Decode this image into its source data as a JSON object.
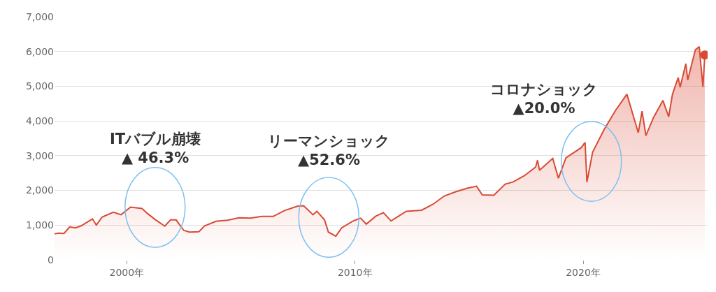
{
  "chart_data": {
    "type": "area",
    "xlim": [
      "1996-11-01",
      "2025-06-15"
    ],
    "ylim": [
      0,
      7000
    ],
    "xticks": [
      {
        "value": "2000-01-01",
        "label": "2000年"
      },
      {
        "value": "2010-01-01",
        "label": "2010年"
      },
      {
        "value": "2020-01-01",
        "label": "2020年"
      }
    ],
    "yticks": [
      0,
      {
        "value": 1000,
        "label": "1,000"
      },
      {
        "value": 2000,
        "label": "2,000"
      },
      {
        "value": 3000,
        "label": "3,000"
      },
      {
        "value": 4000,
        "label": "4,000"
      },
      {
        "value": 5000,
        "label": "5,000"
      },
      {
        "value": 6000,
        "label": "6,000"
      },
      {
        "value": 7000,
        "label": "7,000"
      }
    ],
    "grid": "y",
    "marker": "none",
    "line_style": "solid",
    "x": [
      "1996-11",
      "1997-01",
      "1997-04",
      "1997-07",
      "1997-10",
      "1998-01",
      "1998-07",
      "1998-09",
      "1998-12",
      "1999-06",
      "1999-10",
      "2000-03",
      "2000-09",
      "2000-12",
      "2001-04",
      "2001-09",
      "2001-12",
      "2002-03",
      "2002-07",
      "2002-10",
      "2003-03",
      "2003-06",
      "2003-12",
      "2004-06",
      "2004-12",
      "2005-06",
      "2005-12",
      "2006-06",
      "2006-12",
      "2007-07",
      "2007-10",
      "2008-03",
      "2008-05",
      "2008-09",
      "2008-11",
      "2009-03",
      "2009-06",
      "2009-12",
      "2010-04",
      "2010-07",
      "2010-12",
      "2011-04",
      "2011-08",
      "2011-12",
      "2012-04",
      "2012-12",
      "2013-06",
      "2013-12",
      "2014-06",
      "2014-12",
      "2015-05",
      "2015-08",
      "2016-02",
      "2016-08",
      "2016-12",
      "2017-06",
      "2017-12",
      "2018-01",
      "2018-02",
      "2018-09",
      "2018-12",
      "2019-04",
      "2019-12",
      "2020-02",
      "2020-03",
      "2020-06",
      "2020-12",
      "2021-06",
      "2021-12",
      "2022-06",
      "2022-08",
      "2022-10",
      "2023-02",
      "2023-07",
      "2023-10",
      "2023-12",
      "2024-03",
      "2024-04",
      "2024-07",
      "2024-08",
      "2024-12",
      "2025-02",
      "2025-04",
      "2025-05"
    ],
    "series": [
      {
        "color": "#d94a35",
        "values": [
          750,
          770,
          760,
          950,
          920,
          980,
          1180,
          1000,
          1230,
          1370,
          1300,
          1520,
          1480,
          1330,
          1160,
          970,
          1150,
          1150,
          850,
          800,
          810,
          980,
          1110,
          1140,
          1210,
          1200,
          1250,
          1250,
          1420,
          1550,
          1560,
          1300,
          1400,
          1150,
          800,
          680,
          920,
          1120,
          1200,
          1030,
          1260,
          1360,
          1120,
          1260,
          1400,
          1430,
          1600,
          1840,
          1960,
          2060,
          2120,
          1870,
          1860,
          2180,
          2240,
          2420,
          2670,
          2870,
          2580,
          2920,
          2350,
          2940,
          3230,
          3380,
          2240,
          3100,
          3750,
          4300,
          4770,
          3660,
          4280,
          3580,
          4100,
          4590,
          4120,
          4770,
          5250,
          4970,
          5650,
          5180,
          6050,
          6140,
          4980,
          5900
        ]
      },
      {
        "type": "scatter",
        "marker": "circle",
        "color": "#d94a35",
        "x": [
          "2025-05"
        ],
        "values": [
          5900
        ]
      }
    ],
    "annotations": [
      "ITバブル崩壊\n▲ 46.3%",
      "リーマンショック\n▲52.6%",
      "コロナショック\n▲20.0%"
    ]
  }
}
